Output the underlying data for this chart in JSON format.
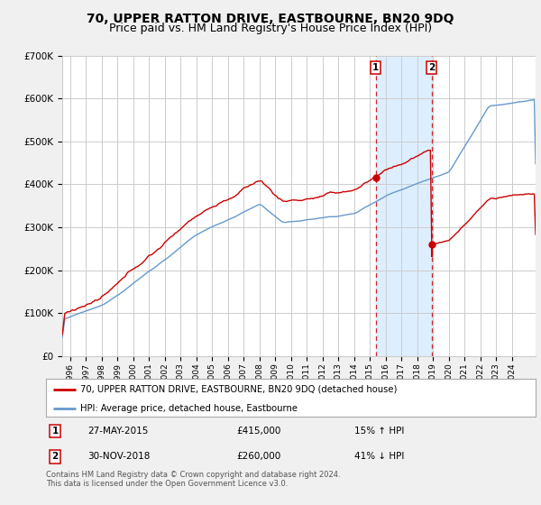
{
  "title": "70, UPPER RATTON DRIVE, EASTBOURNE, BN20 9DQ",
  "subtitle": "Price paid vs. HM Land Registry's House Price Index (HPI)",
  "ylim": [
    0,
    700000
  ],
  "yticks": [
    0,
    100000,
    200000,
    300000,
    400000,
    500000,
    600000,
    700000
  ],
  "ytick_labels": [
    "£0",
    "£100K",
    "£200K",
    "£300K",
    "£400K",
    "£500K",
    "£600K",
    "£700K"
  ],
  "xmin": 1995.5,
  "xmax": 2025.5,
  "sale1_date": 2015.38,
  "sale1_price": 415000,
  "sale1_label": "1",
  "sale1_text": "27-MAY-2015",
  "sale1_amount": "£415,000",
  "sale1_pct": "15% ↑ HPI",
  "sale2_date": 2018.92,
  "sale2_price": 260000,
  "sale2_label": "2",
  "sale2_text": "30-NOV-2018",
  "sale2_amount": "£260,000",
  "sale2_pct": "41% ↓ HPI",
  "line1_color": "#cc0000",
  "line2_color": "#6699cc",
  "shade_color": "#ddeeff",
  "background_color": "#f0f0f0",
  "plot_background": "#ffffff",
  "grid_color": "#cccccc",
  "legend1": "70, UPPER RATTON DRIVE, EASTBOURNE, BN20 9DQ (detached house)",
  "legend2": "HPI: Average price, detached house, Eastbourne",
  "footer": "Contains HM Land Registry data © Crown copyright and database right 2024.\nThis data is licensed under the Open Government Licence v3.0.",
  "title_fontsize": 10,
  "subtitle_fontsize": 9
}
